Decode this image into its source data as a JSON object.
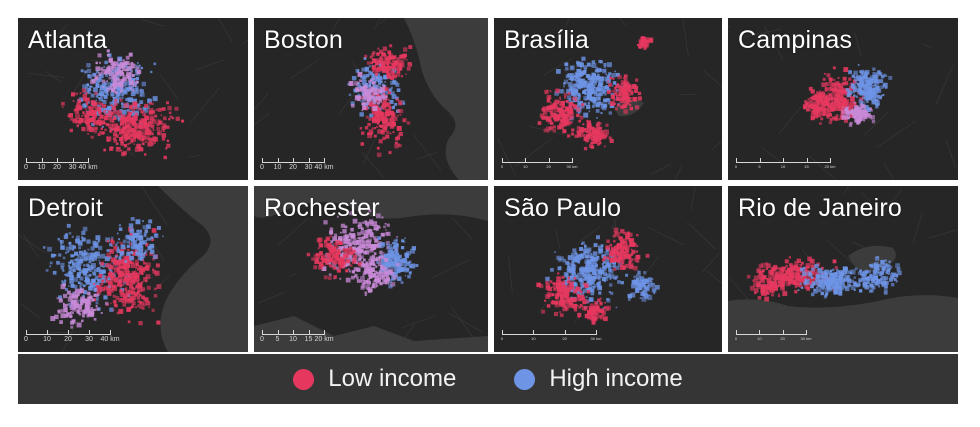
{
  "figure": {
    "colors": {
      "low_income": "#e6385f",
      "high_income": "#6e94e6",
      "mixed": "#c98ad8",
      "background": "#262626",
      "water": "#3c3c3c"
    },
    "cities": [
      {
        "name": "Atlanta",
        "scale": [
          "0",
          "10",
          "20",
          "30",
          "40 km"
        ]
      },
      {
        "name": "Boston",
        "scale": [
          "0",
          "10",
          "20",
          "30",
          "40 km"
        ]
      },
      {
        "name": "Brasília",
        "scale": [
          "0",
          "10",
          "20",
          "30 km"
        ]
      },
      {
        "name": "Campinas",
        "scale": [
          "0",
          "5",
          "10",
          "15",
          "20 km"
        ]
      },
      {
        "name": "Detroit",
        "scale": [
          "0",
          "10",
          "20",
          "30",
          "40 km"
        ]
      },
      {
        "name": "Rochester",
        "scale": [
          "0",
          "5",
          "10",
          "15",
          "20 km"
        ]
      },
      {
        "name": "São Paulo",
        "scale": [
          "0",
          "10",
          "20",
          "30 km"
        ]
      },
      {
        "name": "Rio de Janeiro",
        "scale": [
          "0",
          "10",
          "20",
          "30 km"
        ]
      }
    ],
    "legend": [
      {
        "label": "Low income",
        "color": "#e6385f"
      },
      {
        "label": "High income",
        "color": "#6e94e6"
      }
    ]
  }
}
